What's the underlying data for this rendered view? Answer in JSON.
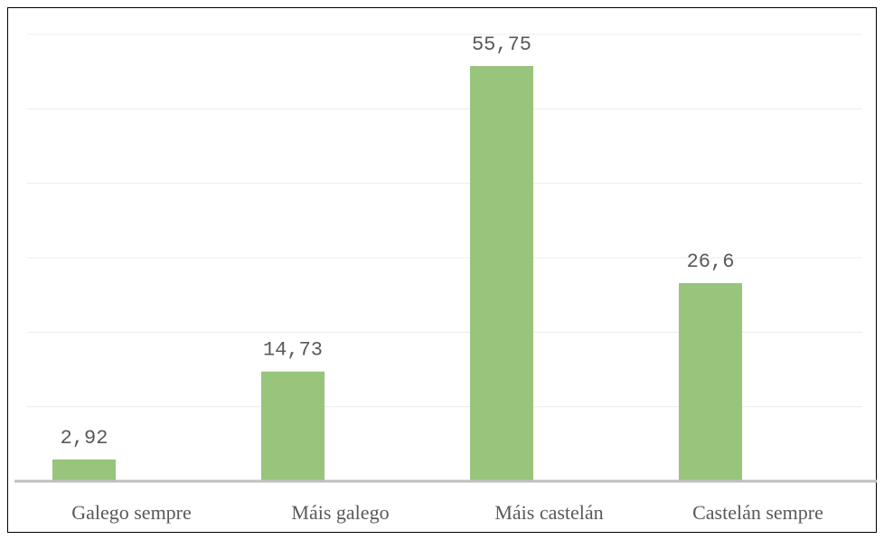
{
  "chart_data": {
    "type": "bar",
    "categories": [
      "Galego sempre",
      "Máis galego",
      "Máis castelán",
      "Castelán sempre"
    ],
    "values": [
      2.92,
      14.73,
      55.75,
      26.6
    ],
    "value_labels": [
      "2,92",
      "14,73",
      "55,75",
      "26,6"
    ],
    "color": "#98c47c",
    "ylim": [
      0,
      60
    ],
    "yticks": [
      0,
      10,
      20,
      30,
      40,
      50,
      60
    ],
    "grid": true
  }
}
